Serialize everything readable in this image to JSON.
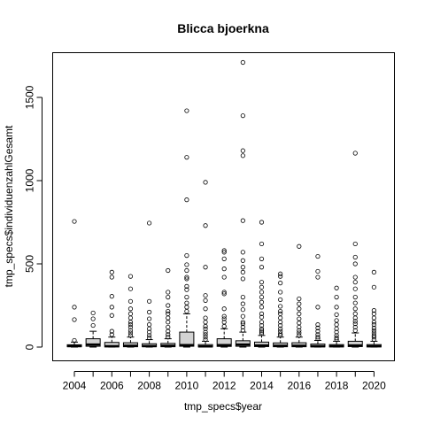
{
  "chart_data": {
    "type": "boxplot",
    "title": "Blicca bjoerkna",
    "xlabel": "tmp_specs$year",
    "ylabel": "tmp_specs$individuenzahlGesamt",
    "ylim": [
      -80,
      1760
    ],
    "y_ticks": [
      0,
      500,
      1000,
      1500
    ],
    "x_tick_labels": [
      "2004",
      "2006",
      "2008",
      "2010",
      "2012",
      "2014",
      "2016",
      "2018",
      "2020"
    ],
    "box_color": "#d3d3d3",
    "groups": [
      {
        "year": "2004",
        "min": 0,
        "q1": 2,
        "median": 6,
        "q3": 14,
        "max": 30,
        "outliers": [
          40,
          165,
          240,
          755
        ]
      },
      {
        "year": "2005",
        "min": 0,
        "q1": 5,
        "median": 15,
        "q3": 50,
        "max": 95,
        "outliers": [
          130,
          170,
          205
        ]
      },
      {
        "year": "2006",
        "min": 0,
        "q1": 1,
        "median": 5,
        "q3": 28,
        "max": 60,
        "outliers": [
          75,
          95,
          190,
          240,
          305,
          420,
          450
        ]
      },
      {
        "year": "2007",
        "min": 0,
        "q1": 2,
        "median": 8,
        "q3": 26,
        "max": 60,
        "outliers": [
          70,
          85,
          100,
          120,
          135,
          150,
          175,
          200,
          230,
          275,
          350,
          425
        ]
      },
      {
        "year": "2008",
        "min": 0,
        "q1": 2,
        "median": 6,
        "q3": 20,
        "max": 45,
        "outliers": [
          55,
          70,
          90,
          110,
          135,
          170,
          210,
          275,
          745
        ]
      },
      {
        "year": "2009",
        "min": 0,
        "q1": 2,
        "median": 8,
        "q3": 22,
        "max": 50,
        "outliers": [
          60,
          75,
          95,
          120,
          150,
          175,
          200,
          215,
          250,
          300,
          330,
          460
        ]
      },
      {
        "year": "2010",
        "min": 0,
        "q1": 5,
        "median": 12,
        "q3": 90,
        "max": 200,
        "outliers": [
          215,
          240,
          265,
          300,
          345,
          365,
          410,
          420,
          460,
          495,
          550,
          885,
          1140,
          1420
        ]
      },
      {
        "year": "2011",
        "min": 0,
        "q1": 1,
        "median": 4,
        "q3": 15,
        "max": 35,
        "outliers": [
          45,
          60,
          75,
          90,
          110,
          125,
          150,
          175,
          230,
          280,
          310,
          480,
          730,
          990
        ]
      },
      {
        "year": "2012",
        "min": 0,
        "q1": 4,
        "median": 12,
        "q3": 50,
        "max": 110,
        "outliers": [
          125,
          150,
          170,
          185,
          230,
          320,
          330,
          420,
          470,
          530,
          570,
          580
        ]
      },
      {
        "year": "2013",
        "min": 0,
        "q1": 5,
        "median": 15,
        "q3": 38,
        "max": 90,
        "outliers": [
          100,
          120,
          140,
          150,
          185,
          225,
          260,
          300,
          410,
          450,
          480,
          520,
          570,
          760,
          1150,
          1180,
          1390,
          1710
        ]
      },
      {
        "year": "2014",
        "min": 0,
        "q1": 3,
        "median": 10,
        "q3": 30,
        "max": 70,
        "outliers": [
          80,
          90,
          100,
          110,
          130,
          150,
          180,
          200,
          240,
          270,
          300,
          330,
          360,
          390,
          480,
          530,
          620,
          750
        ]
      },
      {
        "year": "2015",
        "min": 0,
        "q1": 2,
        "median": 8,
        "q3": 25,
        "max": 60,
        "outliers": [
          70,
          80,
          95,
          110,
          130,
          150,
          175,
          200,
          215,
          245,
          285,
          330,
          385,
          425,
          440
        ]
      },
      {
        "year": "2016",
        "min": 0,
        "q1": 2,
        "median": 8,
        "q3": 26,
        "max": 60,
        "outliers": [
          70,
          85,
          100,
          120,
          145,
          170,
          200,
          230,
          260,
          290,
          605
        ]
      },
      {
        "year": "2017",
        "min": 0,
        "q1": 1,
        "median": 5,
        "q3": 18,
        "max": 40,
        "outliers": [
          50,
          60,
          75,
          95,
          115,
          135,
          240,
          420,
          455,
          545
        ]
      },
      {
        "year": "2018",
        "min": 0,
        "q1": 1,
        "median": 5,
        "q3": 15,
        "max": 35,
        "outliers": [
          45,
          55,
          70,
          90,
          110,
          135,
          160,
          195,
          240,
          300,
          355
        ]
      },
      {
        "year": "2019",
        "min": 0,
        "q1": 3,
        "median": 10,
        "q3": 35,
        "max": 85,
        "outliers": [
          100,
          120,
          140,
          155,
          175,
          200,
          230,
          265,
          300,
          350,
          390,
          420,
          500,
          540,
          620,
          1165
        ]
      },
      {
        "year": "2020",
        "min": 0,
        "q1": 1,
        "median": 5,
        "q3": 15,
        "max": 35,
        "outliers": [
          45,
          60,
          70,
          85,
          100,
          115,
          135,
          150,
          175,
          200,
          220,
          360,
          450
        ]
      }
    ]
  }
}
